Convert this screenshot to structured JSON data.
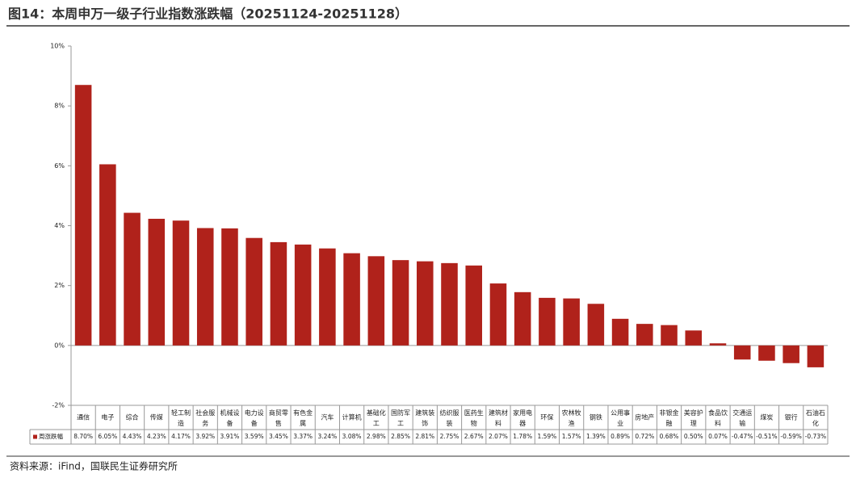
{
  "chart_data": {
    "type": "bar",
    "title": "图14：本周申万一级子行业指数涨跌幅（20251124-20251128）",
    "source": "资料来源：iFind，国联民生证券研究所",
    "categories": [
      "通信",
      "电子",
      "综合",
      "传媒",
      "轻工制造",
      "社会服务",
      "机械设备",
      "电力设备",
      "商贸零售",
      "有色金属",
      "汽车",
      "计算机",
      "基础化工",
      "国防军工",
      "建筑装饰",
      "纺织服装",
      "医药生物",
      "建筑材料",
      "家用电器",
      "环保",
      "农林牧渔",
      "钢铁",
      "公用事业",
      "房地产",
      "非银金融",
      "美容护理",
      "食品饮料",
      "交通运输",
      "煤炭",
      "银行",
      "石油石化"
    ],
    "series": [
      {
        "name": "周涨跌幅",
        "color": "#b0221b",
        "values": [
          8.7,
          6.05,
          4.43,
          4.23,
          4.17,
          3.92,
          3.91,
          3.59,
          3.45,
          3.37,
          3.24,
          3.08,
          2.98,
          2.85,
          2.81,
          2.75,
          2.67,
          2.07,
          1.78,
          1.59,
          1.57,
          1.39,
          0.89,
          0.72,
          0.68,
          0.5,
          0.07,
          -0.47,
          -0.51,
          -0.59,
          -0.73
        ],
        "value_labels": [
          "8.70%",
          "6.05%",
          "4.43%",
          "4.23%",
          "4.17%",
          "3.92%",
          "3.91%",
          "3.59%",
          "3.45%",
          "3.37%",
          "3.24%",
          "3.08%",
          "2.98%",
          "2.85%",
          "2.81%",
          "2.75%",
          "2.67%",
          "2.07%",
          "1.78%",
          "1.59%",
          "1.57%",
          "1.39%",
          "0.89%",
          "0.72%",
          "0.68%",
          "0.50%",
          "0.07%",
          "-0.47%",
          "-0.51%",
          "-0.59%",
          "-0.73%"
        ]
      }
    ],
    "ylim": [
      -2,
      10
    ],
    "yticks": [
      {
        "value": -2,
        "label": "-2%"
      },
      {
        "value": 0,
        "label": "0%"
      },
      {
        "value": 2,
        "label": "2%"
      },
      {
        "value": 4,
        "label": "4%"
      },
      {
        "value": 6,
        "label": "6%"
      },
      {
        "value": 8,
        "label": "8%"
      },
      {
        "value": 10,
        "label": "10%"
      }
    ]
  }
}
